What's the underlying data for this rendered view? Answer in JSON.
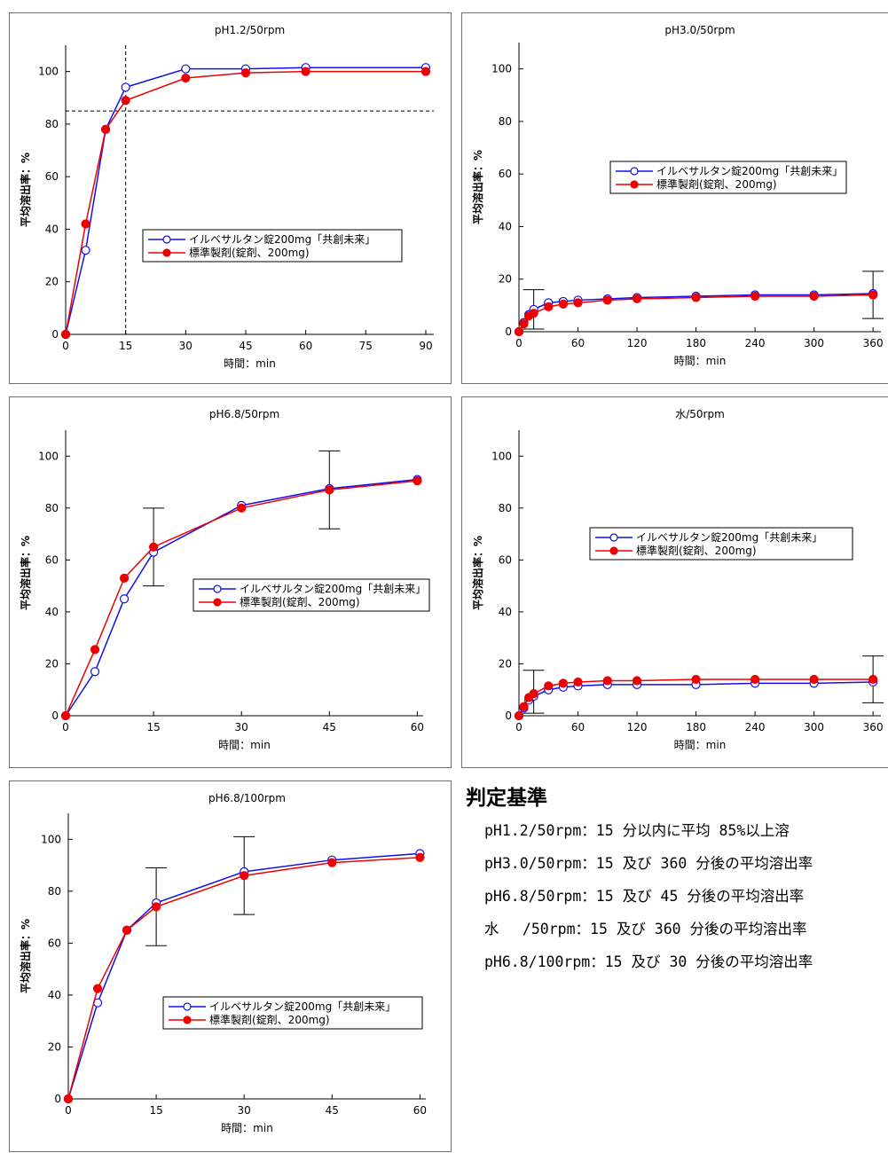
{
  "legend": {
    "blue_label": "イルベサルタン錠200mg「共創未来」",
    "red_label": "標準製剤(錠剤、200mg)"
  },
  "colors": {
    "blue": "#1010ee",
    "red": "#ee0000",
    "axis": "#000000",
    "ref": "#000000"
  },
  "chart_data": [
    {
      "type": "line",
      "title": "pH1.2/50rpm",
      "xlabel": "時間：min",
      "ylabel": "平均溶出率：%",
      "xticks": [
        0,
        15,
        30,
        45,
        60,
        75,
        90
      ],
      "yticks": [
        0,
        20,
        40,
        60,
        80,
        100
      ],
      "xlim": [
        0,
        92
      ],
      "ylim": [
        0,
        110
      ],
      "ref_h": 85,
      "ref_v": 15,
      "series": [
        {
          "name": "イルベサルタン錠200mg「共創未来」",
          "color": "blue",
          "marker": "open",
          "x": [
            0,
            5,
            10,
            15,
            30,
            45,
            60,
            90
          ],
          "y": [
            0,
            32,
            78,
            94,
            101,
            101,
            101.5,
            101.5
          ]
        },
        {
          "name": "標準製剤(錠剤、200mg)",
          "color": "red",
          "marker": "filled",
          "x": [
            0,
            5,
            10,
            15,
            30,
            45,
            60,
            90
          ],
          "y": [
            0,
            42,
            78,
            89,
            97.5,
            99.5,
            100,
            100
          ]
        }
      ],
      "error_bars": []
    },
    {
      "type": "line",
      "title": "pH3.0/50rpm",
      "xlabel": "時間：min",
      "ylabel": "平均溶出率：%",
      "xticks": [
        0,
        60,
        120,
        180,
        240,
        300,
        360
      ],
      "yticks": [
        0,
        20,
        40,
        60,
        80,
        100
      ],
      "xlim": [
        0,
        368
      ],
      "ylim": [
        0,
        110
      ],
      "series": [
        {
          "name": "イルベサルタン錠200mg「共創未来」",
          "color": "blue",
          "marker": "open",
          "x": [
            0,
            5,
            10,
            15,
            30,
            45,
            60,
            90,
            120,
            180,
            240,
            300,
            360
          ],
          "y": [
            0,
            3.5,
            6.5,
            8.5,
            11,
            11.5,
            12,
            12.5,
            13,
            13.5,
            14,
            14,
            14.5
          ]
        },
        {
          "name": "標準製剤(錠剤、200mg)",
          "color": "red",
          "marker": "filled",
          "x": [
            0,
            5,
            10,
            15,
            30,
            45,
            60,
            90,
            120,
            180,
            240,
            300,
            360
          ],
          "y": [
            0,
            3,
            6,
            7,
            9.5,
            10.5,
            11,
            12,
            12.5,
            13,
            13.5,
            13.5,
            14
          ]
        }
      ],
      "error_bars": [
        {
          "x": 15,
          "low": 1,
          "high": 16
        },
        {
          "x": 360,
          "low": 5,
          "high": 23
        }
      ]
    },
    {
      "type": "line",
      "title": "pH6.8/50rpm",
      "xlabel": "時間：min",
      "ylabel": "平均溶出率：%",
      "xticks": [
        0,
        15,
        30,
        45,
        60
      ],
      "yticks": [
        0,
        20,
        40,
        60,
        80,
        100
      ],
      "xlim": [
        0,
        61
      ],
      "ylim": [
        0,
        110
      ],
      "series": [
        {
          "name": "イルベサルタン錠200mg「共創未来」",
          "color": "blue",
          "marker": "open",
          "x": [
            0,
            5,
            10,
            15,
            30,
            45,
            60
          ],
          "y": [
            0,
            17,
            45,
            63,
            81,
            87.5,
            91
          ]
        },
        {
          "name": "標準製剤(錠剤、200mg)",
          "color": "red",
          "marker": "filled",
          "x": [
            0,
            5,
            10,
            15,
            30,
            45,
            60
          ],
          "y": [
            0,
            25.5,
            53,
            65,
            80,
            87,
            90.5
          ]
        }
      ],
      "error_bars": [
        {
          "x": 15,
          "low": 50,
          "high": 80
        },
        {
          "x": 45,
          "low": 72,
          "high": 102
        }
      ]
    },
    {
      "type": "line",
      "title": "水/50rpm",
      "xlabel": "時間：min",
      "ylabel": "平均溶出率：%",
      "xticks": [
        0,
        60,
        120,
        180,
        240,
        300,
        360
      ],
      "yticks": [
        0,
        20,
        40,
        60,
        80,
        100
      ],
      "xlim": [
        0,
        368
      ],
      "ylim": [
        0,
        110
      ],
      "series": [
        {
          "name": "イルベサルタン錠200mg「共創未来」",
          "color": "blue",
          "marker": "open",
          "x": [
            0,
            5,
            10,
            15,
            30,
            45,
            60,
            90,
            120,
            180,
            240,
            300,
            360
          ],
          "y": [
            0,
            3,
            6,
            7.5,
            10,
            11,
            11.5,
            12,
            12,
            12,
            12.5,
            12.5,
            13
          ]
        },
        {
          "name": "標準製剤(錠剤、200mg)",
          "color": "red",
          "marker": "filled",
          "x": [
            0,
            5,
            10,
            15,
            30,
            45,
            60,
            90,
            120,
            180,
            240,
            300,
            360
          ],
          "y": [
            0,
            3.5,
            7,
            8.5,
            11.5,
            12.5,
            13,
            13.5,
            13.5,
            14,
            14,
            14,
            14
          ]
        }
      ],
      "error_bars": [
        {
          "x": 15,
          "low": 1,
          "high": 17.5
        },
        {
          "x": 360,
          "low": 5,
          "high": 23
        }
      ]
    },
    {
      "type": "line",
      "title": "pH6.8/100rpm",
      "xlabel": "時間：min",
      "ylabel": "平均溶出率：%",
      "xticks": [
        0,
        15,
        30,
        45,
        60
      ],
      "yticks": [
        0,
        20,
        40,
        60,
        80,
        100
      ],
      "xlim": [
        0,
        61
      ],
      "ylim": [
        0,
        110
      ],
      "series": [
        {
          "name": "イルベサルタン錠200mg「共創未来」",
          "color": "blue",
          "marker": "open",
          "x": [
            0,
            5,
            10,
            15,
            30,
            45,
            60
          ],
          "y": [
            0,
            37,
            65,
            75.5,
            87.5,
            92,
            94.5
          ]
        },
        {
          "name": "標準製剤(錠剤、200mg)",
          "color": "red",
          "marker": "filled",
          "x": [
            0,
            5,
            10,
            15,
            30,
            45,
            60
          ],
          "y": [
            0,
            42.5,
            65,
            74,
            86,
            91,
            93
          ]
        }
      ],
      "error_bars": [
        {
          "x": 15,
          "low": 59,
          "high": 89
        },
        {
          "x": 30,
          "low": 71,
          "high": 101
        }
      ]
    }
  ],
  "criteria": {
    "title": "判定基準",
    "lines": [
      "pH1.2/50rpm：15 分以内に平均 85%以上溶",
      "pH3.0/50rpm：15 及び 360 分後の平均溶出率",
      "pH6.8/50rpm：15 及び 45 分後の平均溶出率",
      "水　 /50rpm：15 及び 360 分後の平均溶出率",
      "pH6.8/100rpm：15 及び 30 分後の平均溶出率"
    ]
  }
}
